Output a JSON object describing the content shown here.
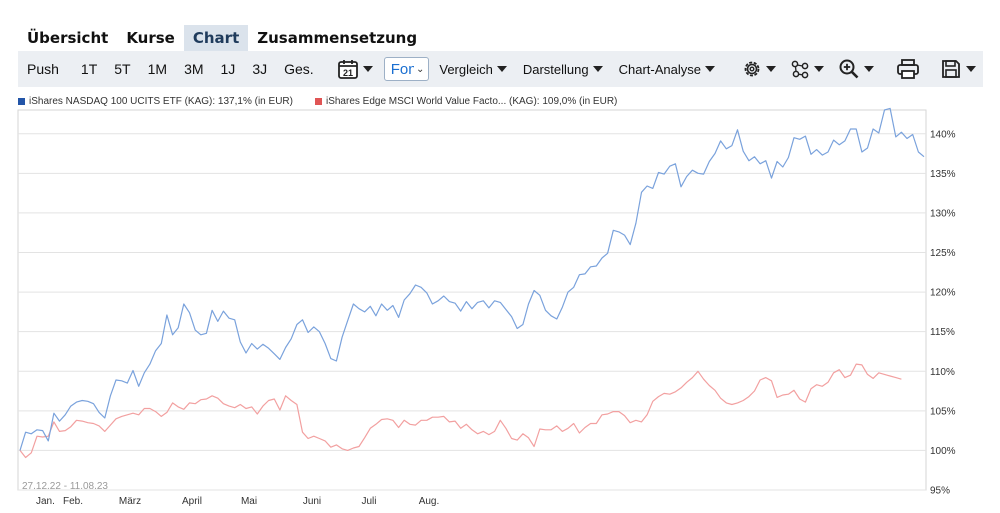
{
  "tabs": [
    {
      "label": "Übersicht",
      "active": false
    },
    {
      "label": "Kurse",
      "active": false
    },
    {
      "label": "Chart",
      "active": true
    },
    {
      "label": "Zusammensetzung",
      "active": false
    }
  ],
  "toolbar": {
    "ranges": [
      "Push",
      "1T",
      "5T",
      "1M",
      "3M",
      "1J",
      "3J",
      "Ges."
    ],
    "calendar_day": "21",
    "fund_select_value": "Fondsgesellschaft",
    "vergleich": "Vergleich",
    "darstellung": "Darstellung",
    "chart_analyse": "Chart-Analyse",
    "icons": [
      "settings-icon",
      "network-icon",
      "zoom-in-icon",
      "print-icon",
      "save-icon"
    ]
  },
  "chart_data": {
    "type": "line",
    "date_range_label": "27.12.22 - 11.08.23",
    "x_ticks": [
      "Jan.",
      "Feb.",
      "März",
      "April",
      "Mai",
      "Juni",
      "Juli",
      "Aug."
    ],
    "y_ticks": [
      "95%",
      "100%",
      "105%",
      "110%",
      "115%",
      "120%",
      "125%",
      "130%",
      "135%",
      "140%"
    ],
    "ylim": [
      95,
      143
    ],
    "grid": true,
    "legend_position": "top-left",
    "series": [
      {
        "name": "iShares NASDAQ 100 UCITS ETF (KAG): 137,1% (in EUR)",
        "color": "#7aa2dc",
        "legend_color": "#2355a8",
        "values": [
          100,
          102.3,
          102.1,
          102.6,
          102.5,
          101.2,
          104.7,
          103.7,
          104.5,
          105.6,
          106.1,
          106.3,
          106.2,
          105.9,
          104.8,
          104.1,
          106.9,
          108.9,
          108.8,
          108.5,
          110.1,
          108.1,
          109.8,
          110.9,
          112.6,
          113.5,
          117.1,
          114.6,
          115.5,
          118.5,
          117.4,
          115.2,
          114.6,
          114.8,
          117.7,
          116.3,
          117.6,
          116.7,
          116.5,
          113.7,
          112.3,
          113.5,
          112.8,
          113.4,
          112.9,
          112.2,
          111.5,
          113.0,
          114.1,
          115.9,
          116.5,
          114.9,
          115.6,
          115.0,
          113.5,
          111.6,
          111.3,
          114.3,
          116.4,
          118.5,
          117.9,
          117.5,
          118.2,
          117.0,
          118.5,
          117.7,
          118.3,
          116.8,
          119.0,
          119.8,
          120.9,
          120.6,
          119.9,
          118.5,
          118.9,
          119.5,
          118.8,
          118.6,
          117.6,
          118.8,
          117.9,
          118.7,
          118.9,
          118.0,
          118.9,
          118.7,
          117.8,
          116.9,
          115.4,
          115.9,
          118.5,
          120.2,
          119.6,
          117.7,
          117.0,
          116.6,
          118.1,
          120.0,
          120.6,
          122.2,
          122.3,
          123.2,
          123.3,
          124.3,
          124.9,
          127.8,
          127.6,
          127.2,
          126.0,
          128.7,
          132.6,
          133.4,
          133.1,
          135.1,
          134.9,
          135.9,
          136.2,
          133.3,
          134.6,
          135.4,
          135.0,
          134.9,
          136.5,
          137.5,
          139.1,
          138.1,
          138.5,
          140.5,
          137.8,
          136.6,
          137.1,
          136.2,
          136.6,
          134.4,
          136.5,
          135.8,
          137.0,
          139.5,
          139.3,
          139.7,
          137.4,
          138.0,
          137.3,
          137.7,
          139.2,
          138.6,
          139.1,
          140.6,
          140.6,
          137.7,
          138.2,
          140.6,
          140.1,
          143.0,
          143.2,
          139.6,
          140.2,
          139.4,
          139.9,
          137.7,
          137.1
        ]
      },
      {
        "name": "iShares Edge MSCI World Value Facto... (KAG): 109,0% (in EUR)",
        "color": "#f2a0a0",
        "legend_color": "#e05555",
        "values": [
          100,
          99.1,
          99.7,
          101.8,
          101.7,
          101.8,
          103.6,
          102.4,
          102.5,
          103.0,
          103.8,
          103.7,
          103.5,
          103.4,
          103.1,
          102.4,
          103.2,
          104.0,
          104.3,
          104.5,
          104.7,
          104.5,
          105.3,
          105.3,
          104.9,
          104.3,
          104.8,
          106.0,
          105.5,
          105.2,
          106.0,
          105.9,
          106.4,
          106.5,
          106.9,
          106.6,
          105.9,
          105.6,
          105.4,
          105.8,
          105.3,
          105.5,
          104.6,
          105.6,
          106.3,
          106.5,
          105.1,
          106.9,
          106.3,
          105.8,
          102.3,
          101.5,
          101.8,
          101.5,
          101.2,
          100.4,
          100.7,
          100.2,
          100.0,
          100.3,
          100.5,
          101.6,
          102.8,
          103.3,
          103.9,
          104.0,
          103.8,
          102.9,
          103.8,
          103.3,
          103.2,
          103.8,
          103.8,
          104.2,
          104.2,
          104.3,
          103.6,
          103.7,
          102.8,
          103.3,
          102.6,
          102.1,
          102.4,
          102.0,
          102.4,
          103.8,
          102.8,
          101.5,
          101.3,
          102.1,
          101.6,
          100.5,
          102.7,
          102.6,
          102.6,
          103.1,
          102.4,
          102.8,
          103.4,
          102.2,
          102.9,
          103.4,
          103.4,
          104.5,
          104.6,
          104.9,
          104.9,
          104.4,
          103.5,
          103.8,
          103.6,
          104.5,
          106.2,
          106.8,
          107.2,
          107.1,
          107.4,
          107.9,
          108.6,
          109.2,
          110.0,
          109.0,
          108.2,
          107.6,
          106.6,
          106.0,
          105.8,
          106.0,
          106.3,
          106.8,
          107.5,
          108.9,
          109.2,
          108.8,
          106.7,
          107.0,
          107.1,
          107.6,
          106.5,
          106.1,
          107.8,
          108.3,
          108.1,
          108.6,
          109.8,
          110.2,
          109.2,
          109.5,
          110.9,
          110.8,
          109.6,
          109.1,
          109.8,
          109.6,
          109.4,
          109.2,
          109.0
        ]
      }
    ]
  }
}
